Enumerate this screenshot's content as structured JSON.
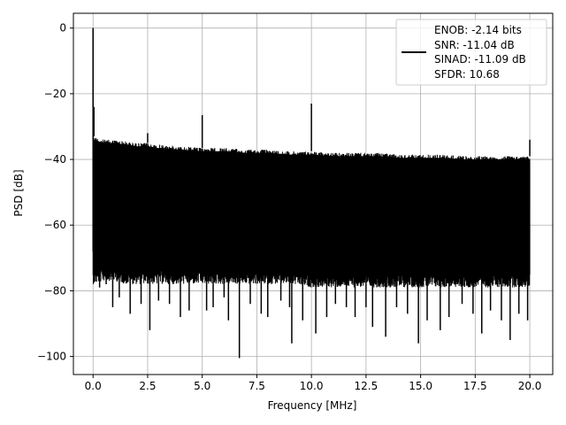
{
  "chart_data": {
    "type": "line",
    "xlabel": "Frequency [MHz]",
    "ylabel": "PSD [dB]",
    "xlim": [
      -0.9,
      21.05
    ],
    "ylim": [
      -105.5,
      4.5
    ],
    "xticks": [
      0.0,
      2.5,
      5.0,
      7.5,
      10.0,
      12.5,
      15.0,
      17.5,
      20.0
    ],
    "xtick_labels": [
      "0.0",
      "2.5",
      "5.0",
      "7.5",
      "10.0",
      "12.5",
      "15.0",
      "17.5",
      "20.0"
    ],
    "yticks": [
      0,
      -20,
      -40,
      -60,
      -80,
      -100
    ],
    "ytick_labels": [
      "0",
      "−20",
      "−40",
      "−60",
      "−80",
      "−100"
    ],
    "grid": true,
    "legend_position": "top-right",
    "legend_lines": [
      "ENOB: -2.14 bits",
      "SNR: -11.04 dB",
      "SINAD: -11.09 dB",
      "SFDR: 10.68"
    ],
    "series_color": "#000000",
    "noise_band": {
      "x": [
        0.05,
        0.5,
        1.0,
        1.5,
        2.0,
        2.5,
        3.0,
        4.0,
        5.0,
        6.0,
        7.0,
        8.0,
        9.0,
        10.0,
        11.0,
        12.0,
        13.0,
        14.0,
        15.0,
        16.0,
        17.0,
        18.0,
        19.0,
        20.0
      ],
      "top": [
        -33,
        -34,
        -34,
        -34.5,
        -35,
        -35,
        -35.5,
        -36,
        -36.5,
        -36.5,
        -37,
        -37,
        -37.5,
        -37.5,
        -38,
        -38,
        -38,
        -38.5,
        -38.5,
        -38.5,
        -39,
        -39,
        -39,
        -39
      ],
      "bottom": [
        -74,
        -73,
        -73,
        -74,
        -74,
        -74,
        -74,
        -74,
        -74,
        -74,
        -74,
        -74,
        -74,
        -75,
        -75,
        -75,
        -75,
        -75,
        -75,
        -75,
        -75,
        -75,
        -75,
        -75
      ]
    },
    "peaks": [
      {
        "x": 0.0,
        "y": 0
      },
      {
        "x": 0.04,
        "y": -24
      },
      {
        "x": 2.5,
        "y": -32
      },
      {
        "x": 5.0,
        "y": -26.5
      },
      {
        "x": 10.0,
        "y": -23
      },
      {
        "x": 20.0,
        "y": -34
      }
    ],
    "dips": [
      {
        "x": 0.1,
        "y": -68
      },
      {
        "x": 0.3,
        "y": -79
      },
      {
        "x": 0.6,
        "y": -78
      },
      {
        "x": 0.9,
        "y": -85
      },
      {
        "x": 1.2,
        "y": -82
      },
      {
        "x": 1.7,
        "y": -87
      },
      {
        "x": 2.2,
        "y": -84
      },
      {
        "x": 2.6,
        "y": -92
      },
      {
        "x": 3.0,
        "y": -83
      },
      {
        "x": 3.5,
        "y": -84
      },
      {
        "x": 4.0,
        "y": -88
      },
      {
        "x": 4.4,
        "y": -86
      },
      {
        "x": 5.2,
        "y": -86
      },
      {
        "x": 5.5,
        "y": -85
      },
      {
        "x": 6.0,
        "y": -82
      },
      {
        "x": 6.2,
        "y": -89
      },
      {
        "x": 6.7,
        "y": -100.5
      },
      {
        "x": 7.2,
        "y": -84
      },
      {
        "x": 7.7,
        "y": -87
      },
      {
        "x": 8.0,
        "y": -88
      },
      {
        "x": 8.6,
        "y": -83
      },
      {
        "x": 9.0,
        "y": -85
      },
      {
        "x": 9.1,
        "y": -96
      },
      {
        "x": 9.6,
        "y": -89
      },
      {
        "x": 10.2,
        "y": -93
      },
      {
        "x": 10.7,
        "y": -88
      },
      {
        "x": 11.1,
        "y": -84
      },
      {
        "x": 11.6,
        "y": -85
      },
      {
        "x": 12.0,
        "y": -88
      },
      {
        "x": 12.5,
        "y": -85
      },
      {
        "x": 12.8,
        "y": -91
      },
      {
        "x": 13.4,
        "y": -94
      },
      {
        "x": 13.9,
        "y": -85
      },
      {
        "x": 14.4,
        "y": -87
      },
      {
        "x": 14.9,
        "y": -96
      },
      {
        "x": 15.3,
        "y": -89
      },
      {
        "x": 15.9,
        "y": -92
      },
      {
        "x": 16.3,
        "y": -88
      },
      {
        "x": 16.9,
        "y": -84
      },
      {
        "x": 17.4,
        "y": -87
      },
      {
        "x": 17.8,
        "y": -93
      },
      {
        "x": 18.2,
        "y": -86
      },
      {
        "x": 18.7,
        "y": -89
      },
      {
        "x": 19.1,
        "y": -95
      },
      {
        "x": 19.5,
        "y": -87
      },
      {
        "x": 19.9,
        "y": -89
      }
    ]
  }
}
